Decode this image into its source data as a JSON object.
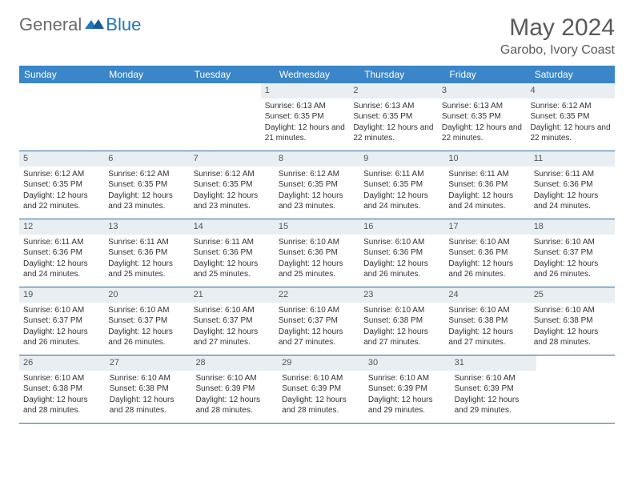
{
  "logo": {
    "text1": "General",
    "text2": "Blue",
    "color1": "#6b6b6b",
    "color2": "#2176bd"
  },
  "title": "May 2024",
  "location": "Garobo, Ivory Coast",
  "header_bg": "#3a86c8",
  "header_fg": "#ffffff",
  "row_border": "#2a6aa8",
  "daynum_bg": "#e9eef2",
  "weekdays": [
    "Sunday",
    "Monday",
    "Tuesday",
    "Wednesday",
    "Thursday",
    "Friday",
    "Saturday"
  ],
  "weeks": [
    [
      null,
      null,
      null,
      {
        "d": "1",
        "sr": "6:13 AM",
        "ss": "6:35 PM",
        "dl": "12 hours and 21 minutes."
      },
      {
        "d": "2",
        "sr": "6:13 AM",
        "ss": "6:35 PM",
        "dl": "12 hours and 22 minutes."
      },
      {
        "d": "3",
        "sr": "6:13 AM",
        "ss": "6:35 PM",
        "dl": "12 hours and 22 minutes."
      },
      {
        "d": "4",
        "sr": "6:12 AM",
        "ss": "6:35 PM",
        "dl": "12 hours and 22 minutes."
      }
    ],
    [
      {
        "d": "5",
        "sr": "6:12 AM",
        "ss": "6:35 PM",
        "dl": "12 hours and 22 minutes."
      },
      {
        "d": "6",
        "sr": "6:12 AM",
        "ss": "6:35 PM",
        "dl": "12 hours and 23 minutes."
      },
      {
        "d": "7",
        "sr": "6:12 AM",
        "ss": "6:35 PM",
        "dl": "12 hours and 23 minutes."
      },
      {
        "d": "8",
        "sr": "6:12 AM",
        "ss": "6:35 PM",
        "dl": "12 hours and 23 minutes."
      },
      {
        "d": "9",
        "sr": "6:11 AM",
        "ss": "6:35 PM",
        "dl": "12 hours and 24 minutes."
      },
      {
        "d": "10",
        "sr": "6:11 AM",
        "ss": "6:36 PM",
        "dl": "12 hours and 24 minutes."
      },
      {
        "d": "11",
        "sr": "6:11 AM",
        "ss": "6:36 PM",
        "dl": "12 hours and 24 minutes."
      }
    ],
    [
      {
        "d": "12",
        "sr": "6:11 AM",
        "ss": "6:36 PM",
        "dl": "12 hours and 24 minutes."
      },
      {
        "d": "13",
        "sr": "6:11 AM",
        "ss": "6:36 PM",
        "dl": "12 hours and 25 minutes."
      },
      {
        "d": "14",
        "sr": "6:11 AM",
        "ss": "6:36 PM",
        "dl": "12 hours and 25 minutes."
      },
      {
        "d": "15",
        "sr": "6:10 AM",
        "ss": "6:36 PM",
        "dl": "12 hours and 25 minutes."
      },
      {
        "d": "16",
        "sr": "6:10 AM",
        "ss": "6:36 PM",
        "dl": "12 hours and 26 minutes."
      },
      {
        "d": "17",
        "sr": "6:10 AM",
        "ss": "6:36 PM",
        "dl": "12 hours and 26 minutes."
      },
      {
        "d": "18",
        "sr": "6:10 AM",
        "ss": "6:37 PM",
        "dl": "12 hours and 26 minutes."
      }
    ],
    [
      {
        "d": "19",
        "sr": "6:10 AM",
        "ss": "6:37 PM",
        "dl": "12 hours and 26 minutes."
      },
      {
        "d": "20",
        "sr": "6:10 AM",
        "ss": "6:37 PM",
        "dl": "12 hours and 26 minutes."
      },
      {
        "d": "21",
        "sr": "6:10 AM",
        "ss": "6:37 PM",
        "dl": "12 hours and 27 minutes."
      },
      {
        "d": "22",
        "sr": "6:10 AM",
        "ss": "6:37 PM",
        "dl": "12 hours and 27 minutes."
      },
      {
        "d": "23",
        "sr": "6:10 AM",
        "ss": "6:38 PM",
        "dl": "12 hours and 27 minutes."
      },
      {
        "d": "24",
        "sr": "6:10 AM",
        "ss": "6:38 PM",
        "dl": "12 hours and 27 minutes."
      },
      {
        "d": "25",
        "sr": "6:10 AM",
        "ss": "6:38 PM",
        "dl": "12 hours and 28 minutes."
      }
    ],
    [
      {
        "d": "26",
        "sr": "6:10 AM",
        "ss": "6:38 PM",
        "dl": "12 hours and 28 minutes."
      },
      {
        "d": "27",
        "sr": "6:10 AM",
        "ss": "6:38 PM",
        "dl": "12 hours and 28 minutes."
      },
      {
        "d": "28",
        "sr": "6:10 AM",
        "ss": "6:39 PM",
        "dl": "12 hours and 28 minutes."
      },
      {
        "d": "29",
        "sr": "6:10 AM",
        "ss": "6:39 PM",
        "dl": "12 hours and 28 minutes."
      },
      {
        "d": "30",
        "sr": "6:10 AM",
        "ss": "6:39 PM",
        "dl": "12 hours and 29 minutes."
      },
      {
        "d": "31",
        "sr": "6:10 AM",
        "ss": "6:39 PM",
        "dl": "12 hours and 29 minutes."
      },
      null
    ]
  ],
  "labels": {
    "sunrise": "Sunrise:",
    "sunset": "Sunset:",
    "daylight": "Daylight:"
  }
}
